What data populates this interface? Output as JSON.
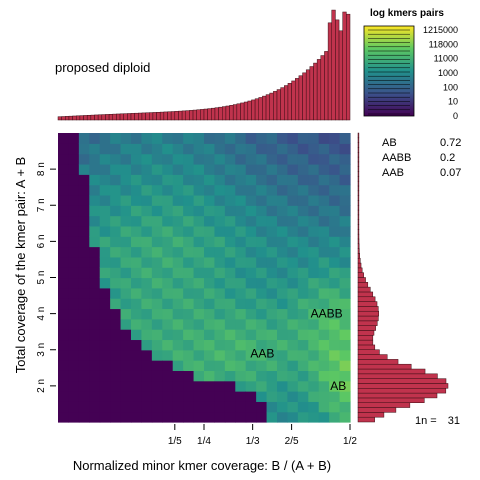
{
  "chart_data": {
    "type": "heatmap",
    "title": "proposed diploid",
    "xlabel": "Normalized minor kmer coverage: B / (A + B)",
    "ylabel": "Total coverage of the kmer pair: A + B",
    "x_ticks": [
      {
        "label": "1/5",
        "value": 0.2
      },
      {
        "label": "1/4",
        "value": 0.25
      },
      {
        "label": "1/3",
        "value": 0.3333
      },
      {
        "label": "2/5",
        "value": 0.4
      },
      {
        "label": "1/2",
        "value": 0.5
      }
    ],
    "y_ticks": [
      {
        "label": "2 n",
        "value": 2
      },
      {
        "label": "3 n",
        "value": 3
      },
      {
        "label": "4 n",
        "value": 4
      },
      {
        "label": "5 n",
        "value": 5
      },
      {
        "label": "6 n",
        "value": 6
      },
      {
        "label": "7 n",
        "value": 7
      },
      {
        "label": "8 n",
        "value": 8
      }
    ],
    "xlim": [
      0,
      0.5
    ],
    "ylim": [
      1,
      9
    ],
    "annotations": [
      {
        "text": "AABB",
        "x": 0.46,
        "y": 4.0
      },
      {
        "text": "AAB",
        "x": 0.35,
        "y": 2.9
      },
      {
        "text": "AB",
        "x": 0.48,
        "y": 2.0
      }
    ],
    "legend": {
      "title": "log kmers pairs",
      "placement": "top-right",
      "labels": [
        "1215000",
        "118000",
        "11000",
        "1000",
        "100",
        "10",
        "0"
      ]
    },
    "proportions": [
      {
        "name": "AB",
        "value": "0.72"
      },
      {
        "name": "AABB",
        "value": "0.2"
      },
      {
        "name": "AAB",
        "value": "0.07"
      }
    ],
    "coverage_label": "1n =",
    "coverage_value": "31",
    "colors": {
      "histogram_fill": "#c0334d",
      "histogram_stroke": "#3a0d14",
      "background_zero": "#440154"
    }
  }
}
